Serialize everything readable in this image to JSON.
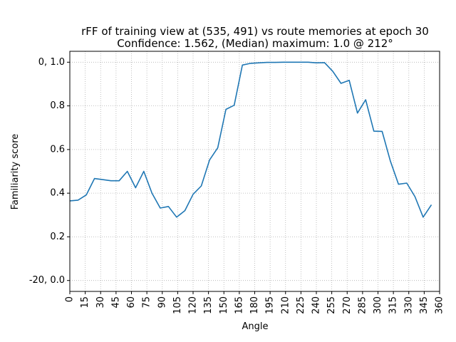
{
  "chart_data": {
    "type": "line",
    "title": "rFF of training view at (535, 491) vs route memories at epoch 30",
    "subtitle": "Confidence: 1.562, (Median) maximum: 1.0 @ 212°",
    "xlabel": "Angle",
    "ylabel": "Familiarity score",
    "xlim": [
      0,
      360
    ],
    "ylim": [
      -0.05,
      1.05
    ],
    "grid": true,
    "x_ticks": [
      0,
      15,
      30,
      45,
      60,
      75,
      90,
      105,
      120,
      135,
      150,
      165,
      180,
      195,
      210,
      225,
      240,
      255,
      270,
      285,
      300,
      315,
      330,
      345,
      360
    ],
    "x_tick_labels": [
      "0",
      "15",
      "30",
      "45",
      "60",
      "75",
      "90",
      "105",
      "120",
      "135",
      "150",
      "165",
      "180",
      "195",
      "210",
      "225",
      "240",
      "255",
      "270",
      "285",
      "300",
      "315",
      "330",
      "345",
      "360"
    ],
    "y_ticks": [
      0.0,
      0.2,
      0.4,
      0.6,
      0.8,
      1.0
    ],
    "y_tick_labels": [
      "-20, 0.0",
      "0.2",
      "0.4",
      "0.6",
      "0.8",
      "0, 1.0"
    ],
    "line_color": "#1f77b4",
    "series": [
      {
        "x": [
          0,
          8,
          16,
          24,
          32,
          40,
          48,
          56,
          64,
          72,
          80,
          88,
          96,
          104,
          112,
          120,
          128,
          136,
          144,
          152,
          160,
          168,
          176,
          184,
          192,
          200,
          208,
          216,
          224,
          232,
          240,
          248,
          256,
          264,
          272,
          280,
          288,
          296,
          304,
          312,
          320,
          328,
          336,
          344,
          352
        ],
        "values": [
          0.365,
          0.368,
          0.392,
          0.467,
          0.462,
          0.457,
          0.457,
          0.5,
          0.425,
          0.5,
          0.4,
          0.332,
          0.339,
          0.29,
          0.32,
          0.395,
          0.433,
          0.552,
          0.608,
          0.784,
          0.803,
          0.987,
          0.995,
          0.997,
          0.999,
          0.999,
          1.0,
          1.0,
          1.0,
          1.0,
          0.997,
          0.998,
          0.958,
          0.903,
          0.917,
          0.767,
          0.828,
          0.684,
          0.683,
          0.548,
          0.441,
          0.446,
          0.384,
          0.29,
          0.347
        ]
      }
    ]
  }
}
